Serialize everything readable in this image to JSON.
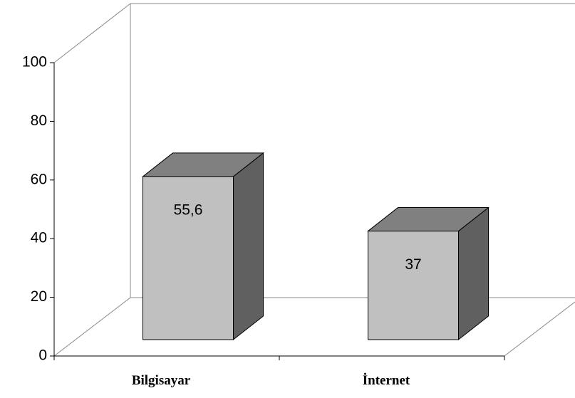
{
  "chart_data": {
    "type": "bar3d",
    "categories": [
      "Bilgisayar",
      "İnternet"
    ],
    "values": [
      55.6,
      37
    ],
    "value_labels": [
      "55,6",
      "37"
    ],
    "color": "#c0c0c0",
    "top_color": "#808080",
    "side_color": "#606060",
    "ylim": [
      0,
      100
    ],
    "yticks": [
      0,
      20,
      40,
      60,
      80,
      100
    ]
  }
}
